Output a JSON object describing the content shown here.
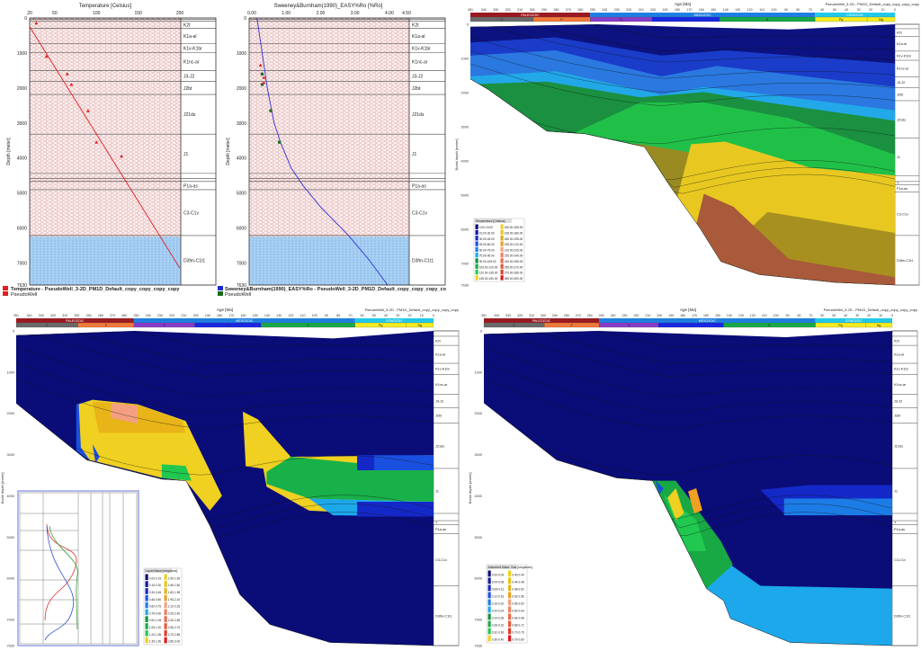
{
  "well_formations": [
    "K2t",
    "K1a-al",
    "K1v-K1br",
    "K1nc-ar",
    "J3-J2",
    "J2bt",
    "J21ds",
    "J1",
    "P1a-as",
    "C3-C1v",
    "D3fm-C1t1"
  ],
  "section_formations": [
    "K2t",
    "K1a-al",
    "K1v-K1br",
    "K1nc-ar",
    "J3-J2",
    "J2bt",
    "J21ds",
    "J1",
    "T",
    "P1a-as",
    "C3-C1v",
    "D3fm-C1t1"
  ],
  "section_axis": {
    "xlabel": "Age [Ma]",
    "ylabel": "Burial depth [meter]",
    "age_ticks": [
      "351",
      "340",
      "330",
      "320",
      "310",
      "300",
      "290",
      "280",
      "270",
      "260",
      "250",
      "240",
      "230",
      "220",
      "210",
      "200",
      "190",
      "180",
      "170",
      "160",
      "150",
      "140",
      "130",
      "120",
      "110",
      "100",
      "90",
      "80",
      "70",
      "60",
      "50",
      "40",
      "30",
      "20",
      "10",
      "0"
    ],
    "depth_ticks": [
      "0",
      "1000",
      "2000",
      "3000",
      "4000",
      "5000",
      "6000",
      "7000",
      "7630"
    ],
    "eras": [
      {
        "label": "PALEOZOIC",
        "from": 351,
        "to": 252,
        "color": "#9a1a22"
      },
      {
        "label": "MESOZOIC",
        "from": 252,
        "to": 66,
        "color": "#1f7fe0"
      },
      {
        "label": "CENOZOIC",
        "from": 66,
        "to": 0,
        "color": "#22c8e8"
      }
    ],
    "periods": [
      {
        "label": "C",
        "from": 351,
        "to": 299,
        "color": "#6a6a6a"
      },
      {
        "label": "P",
        "from": 299,
        "to": 252,
        "color": "#f07a3a"
      },
      {
        "label": "Tr",
        "from": 252,
        "to": 201,
        "color": "#8a3cc8"
      },
      {
        "label": "J",
        "from": 201,
        "to": 145,
        "color": "#1a28e0"
      },
      {
        "label": "K",
        "from": 145,
        "to": 66,
        "color": "#18a848"
      },
      {
        "label": "Pg",
        "from": 66,
        "to": 23,
        "color": "#f4ec20"
      },
      {
        "label": "Ng",
        "from": 23,
        "to": 0,
        "color": "#f4ec20"
      }
    ]
  },
  "chart_data": [
    {
      "type": "line",
      "title": "Temperature [Celsius]",
      "ylabel": "Depth [meter]",
      "xlim": [
        20,
        200
      ],
      "ylim": [
        7630,
        0
      ],
      "x_ticks": [
        "20",
        "50",
        "100",
        "150",
        "200"
      ],
      "y_ticks": [
        "0",
        "1000",
        "2000",
        "3000",
        "4000",
        "5000",
        "6000",
        "7000",
        "7630"
      ],
      "series": [
        {
          "name": "Temperature - PseudoWell_3-2D_PM1D_Default_copy_copy_copy_copy",
          "color": "#e02020",
          "points": [
            [
              20,
              250
            ],
            [
              200,
              7150
            ]
          ]
        },
        {
          "name": "PseudoWell",
          "color": "#e02020",
          "marker": "triangle",
          "points": [
            [
              28,
              150
            ],
            [
              40,
              1100
            ],
            [
              65,
              1600
            ],
            [
              70,
              1900
            ],
            [
              90,
              2650
            ],
            [
              100,
              3550
            ],
            [
              130,
              3950
            ]
          ]
        }
      ],
      "zones": [
        {
          "from_depth": 6250,
          "to_depth": 7630,
          "color": "#9cc8f0"
        }
      ]
    },
    {
      "type": "line",
      "title": "Sweeney&Burnham(1990)_EASY%Ro [%Ro]",
      "ylabel": "Depth [meter]",
      "xlim": [
        0,
        4.5
      ],
      "ylim": [
        7630,
        0
      ],
      "x_ticks": [
        "0.00",
        "1.00",
        "2.00",
        "3.00",
        "4.00",
        "4.50"
      ],
      "y_ticks": [
        "0",
        "1000",
        "2000",
        "3000",
        "4000",
        "5000",
        "6000",
        "7000",
        "7630"
      ],
      "series": [
        {
          "name": "Sweeney&Burnham(1990)_EASY%Ro - PseudoWell_3-2D_PM1D_Default_copy_copy_copy_co",
          "color": "#3030d0",
          "points": [
            [
              0.15,
              0
            ],
            [
              0.3,
              1000
            ],
            [
              0.45,
              2000
            ],
            [
              0.65,
              3000
            ],
            [
              0.85,
              3600
            ],
            [
              1.15,
              4300
            ],
            [
              1.5,
              4800
            ],
            [
              2.0,
              5400
            ],
            [
              2.8,
              6200
            ],
            [
              3.4,
              6900
            ],
            [
              3.95,
              7630
            ]
          ]
        },
        {
          "name": "PseudoWell",
          "color": "#1a6a1a",
          "marker": "square",
          "points": [
            [
              0.3,
              1600
            ],
            [
              0.3,
              1900
            ],
            [
              0.55,
              2650
            ],
            [
              0.8,
              3550
            ]
          ]
        },
        {
          "name": "",
          "color": "#e02020",
          "marker": "triangle",
          "points": [
            [
              0.25,
              1350
            ],
            [
              0.35,
              1700
            ],
            [
              0.35,
              1850
            ]
          ]
        }
      ],
      "zones": [
        {
          "from_depth": 6250,
          "to_depth": 7630,
          "color": "#9cc8f0"
        }
      ]
    },
    {
      "type": "heatmap",
      "title": "PseudoWell_3-2D - PM1D_Default_copy_copy_copy_copy",
      "legend_title": "Temperature [Celsius]",
      "legend_placement": "bottom-left",
      "legend": [
        "0.00-15.00",
        "15.00-30.00",
        "30.00-45.00",
        "45.00-60.00",
        "60.00-75.00",
        "75.00-90.00",
        "90.00-105.00",
        "105.00-120.00",
        "120.00-135.00",
        "135.00-150.00",
        "150.00-165.00",
        "165.00-180.00",
        "180.00-195.00",
        "195.00-210.00",
        "210.00-225.00",
        "225.00-240.00",
        "240.00-255.00",
        "255.00-270.00",
        "270.00-285.00",
        "285.00-300.00"
      ],
      "legend_colors": [
        "#0a0a6e",
        "#0e1a9a",
        "#1428c8",
        "#1a50e0",
        "#1c7ce6",
        "#1ca8ea",
        "#14903c",
        "#18a844",
        "#20c850",
        "#f0d020",
        "#f0d020",
        "#e8c418",
        "#d4ac10",
        "#e8a020",
        "#f4a080",
        "#f08060",
        "#ec6a48",
        "#e85838",
        "#e04028",
        "#e01818"
      ]
    },
    {
      "type": "heatmap",
      "title": "PseudoWell_3-2D - PM1D_Default_copy_copy_copy_copy",
      "legend_title": "Liquid Mass [megatons]",
      "legend_placement": "bottom-left",
      "legend": [
        "0.00-0.15",
        "0.15-0.30",
        "0.30-0.45",
        "0.45-0.60",
        "0.60-0.75",
        "0.75-0.90",
        "0.90-1.05",
        "1.05-1.20",
        "1.20-1.35",
        "1.35-1.50",
        "1.50-1.65",
        "1.65-1.80",
        "1.80-1.95",
        "1.95-2.10",
        "2.10-2.25",
        "2.25-2.40",
        "2.40-2.55",
        "2.55-2.70",
        "2.70-2.85",
        "2.85-3.00"
      ],
      "legend_colors": [
        "#0a0a6e",
        "#0e1a9a",
        "#1428c8",
        "#1a50e0",
        "#1c7ce6",
        "#1ca8ea",
        "#14903c",
        "#18a844",
        "#20c850",
        "#f0d020",
        "#f0d020",
        "#e8c418",
        "#e8b418",
        "#f0a020",
        "#f4a080",
        "#f08060",
        "#ec6a48",
        "#e85838",
        "#e04028",
        "#e01818"
      ]
    },
    {
      "type": "heatmap",
      "title": "PseudoWell_3-2D - PM1D_Default_copy_copy_copy_copy",
      "legend_title": "Adsorbed Mass: Gas [megatons]",
      "legend_placement": "bottom-left",
      "legend": [
        "0.00-0.04",
        "0.04-0.08",
        "0.08-0.12",
        "0.12-0.16",
        "0.16-0.20",
        "0.20-0.24",
        "0.24-0.28",
        "0.28-0.32",
        "0.32-0.36",
        "0.36-0.40",
        "0.40-0.44",
        "0.44-0.48",
        "0.48-0.52",
        "0.52-0.56",
        "0.56-0.60",
        "0.60-0.64",
        "0.64-0.68",
        "0.68-0.72",
        "0.72-0.76",
        "0.76-0.80"
      ],
      "legend_colors": [
        "#0a0a6e",
        "#0e1a9a",
        "#1428c8",
        "#1a50e0",
        "#1c7ce6",
        "#1ca8ea",
        "#14903c",
        "#18a844",
        "#20c850",
        "#f0d020",
        "#f0d020",
        "#e8c418",
        "#e8b418",
        "#f0a020",
        "#f4a080",
        "#f08060",
        "#ec6a48",
        "#e85838",
        "#e04028",
        "#e01818"
      ]
    }
  ]
}
